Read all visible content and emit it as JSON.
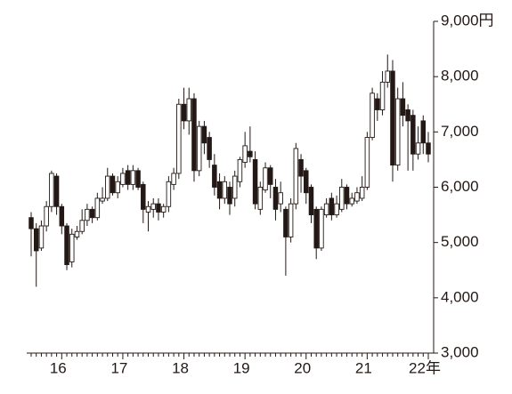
{
  "chart_data": {
    "type": "candlestick",
    "categories": [
      null,
      null,
      null,
      null,
      null,
      null,
      "16",
      null,
      null,
      null,
      null,
      null,
      null,
      null,
      null,
      null,
      null,
      null,
      "17",
      null,
      null,
      null,
      null,
      null,
      null,
      null,
      null,
      null,
      null,
      null,
      "18",
      null,
      null,
      null,
      null,
      null,
      null,
      null,
      null,
      null,
      null,
      null,
      "19",
      null,
      null,
      null,
      null,
      null,
      null,
      null,
      null,
      null,
      null,
      null,
      "20",
      null,
      null,
      null,
      null,
      null,
      null,
      null,
      null,
      null,
      null,
      null,
      "21",
      null,
      null,
      null,
      null,
      null,
      null,
      null,
      null,
      null,
      null,
      null,
      "22年"
    ],
    "open": [
      5450,
      5250,
      4900,
      5300,
      5650,
      6200,
      5650,
      5300,
      4650,
      5100,
      5200,
      5400,
      5600,
      5450,
      5750,
      5800,
      6200,
      5900,
      6050,
      6300,
      6050,
      6300,
      6050,
      5550,
      5600,
      5700,
      5550,
      5650,
      6050,
      6250,
      7500,
      7200,
      7600,
      6300,
      7100,
      6900,
      6400,
      6100,
      5800,
      6000,
      5800,
      6100,
      6450,
      6650,
      6500,
      5600,
      5950,
      6350,
      6000,
      5700,
      5600,
      5100,
      5700,
      6500,
      6300,
      6000,
      5600,
      4900,
      5500,
      5800,
      5500,
      5600,
      6000,
      5700,
      5750,
      5800,
      6000,
      6900,
      7600,
      7400,
      7900,
      8100,
      6400,
      7600,
      7400,
      7300,
      6600,
      7200,
      6800
    ],
    "high": [
      5550,
      5350,
      5400,
      5750,
      6300,
      6250,
      5700,
      5350,
      5250,
      5300,
      5600,
      5700,
      5650,
      5900,
      6000,
      6350,
      6250,
      6200,
      6350,
      6400,
      6400,
      6350,
      6100,
      5750,
      5800,
      5800,
      5700,
      6200,
      6350,
      7600,
      7800,
      7800,
      7700,
      7200,
      7200,
      7000,
      6600,
      6250,
      6200,
      6100,
      6300,
      6550,
      7000,
      7100,
      6650,
      6100,
      6450,
      6400,
      6150,
      6100,
      5650,
      5800,
      6800,
      6600,
      6350,
      6050,
      5650,
      5650,
      5800,
      5900,
      5850,
      6150,
      6050,
      5900,
      6000,
      6200,
      7000,
      7800,
      7700,
      8100,
      8400,
      8300,
      7800,
      7900,
      7500,
      7400,
      7100,
      7300,
      7000
    ],
    "low": [
      4750,
      4200,
      4850,
      5200,
      5550,
      5500,
      5150,
      4500,
      4550,
      5050,
      5150,
      5300,
      5350,
      5400,
      5700,
      5750,
      5850,
      5800,
      6000,
      5950,
      5950,
      5950,
      5350,
      5200,
      5450,
      5400,
      5450,
      5550,
      5950,
      6150,
      7050,
      6950,
      6100,
      6200,
      6600,
      6350,
      5850,
      5600,
      5700,
      5500,
      5650,
      6000,
      6350,
      6450,
      5600,
      5500,
      5900,
      5800,
      5400,
      5550,
      4400,
      5000,
      5600,
      5900,
      5700,
      5350,
      4700,
      4850,
      5450,
      5400,
      5450,
      5550,
      5600,
      5650,
      5700,
      5750,
      5950,
      6850,
      7200,
      7300,
      7800,
      6100,
      6300,
      7100,
      6300,
      6300,
      6500,
      6600,
      6450
    ],
    "close": [
      5250,
      4850,
      5300,
      5650,
      6250,
      5650,
      5300,
      4600,
      5150,
      5200,
      5400,
      5600,
      5450,
      5800,
      5800,
      6200,
      5900,
      6100,
      6250,
      6050,
      6300,
      6000,
      5600,
      5650,
      5700,
      5550,
      5650,
      6100,
      6250,
      7500,
      7200,
      7600,
      6300,
      7100,
      6800,
      6500,
      6000,
      5800,
      6100,
      5700,
      6200,
      6500,
      6750,
      6550,
      5700,
      6000,
      6350,
      6050,
      5600,
      5900,
      5100,
      5700,
      6700,
      6200,
      5900,
      5500,
      4900,
      5600,
      5700,
      5500,
      5700,
      6000,
      5700,
      5800,
      5900,
      6000,
      6900,
      7700,
      7400,
      7900,
      8100,
      6400,
      7600,
      7300,
      7200,
      6600,
      6800,
      6800,
      6600
    ],
    "up_color": "#ffffff",
    "down_color": "#231815",
    "ylim": [
      3000,
      9000
    ],
    "yticks": [
      {
        "value": 3000,
        "label": "3,000"
      },
      {
        "value": 4000,
        "label": "4,000"
      },
      {
        "value": 5000,
        "label": "5,000"
      },
      {
        "value": 6000,
        "label": "6,000"
      },
      {
        "value": 7000,
        "label": "7,000"
      },
      {
        "value": 8000,
        "label": "8,000"
      },
      {
        "value": 9000,
        "label": "9,000円"
      }
    ]
  }
}
